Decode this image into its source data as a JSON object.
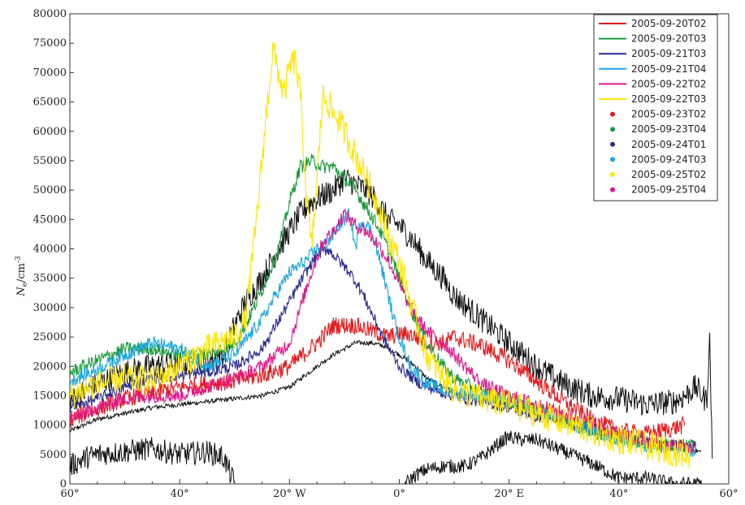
{
  "chart_data": {
    "type": "line",
    "title": "",
    "xlabel": "",
    "ylabel_main": "N",
    "ylabel_sub": "e",
    "ylabel_unit": "/cm",
    "ylabel_sup": "-3",
    "xlim": [
      -60,
      60
    ],
    "ylim": [
      0,
      80000
    ],
    "y_ticks": [
      0,
      5000,
      10000,
      15000,
      20000,
      25000,
      30000,
      35000,
      40000,
      45000,
      50000,
      55000,
      60000,
      65000,
      70000,
      75000,
      80000
    ],
    "y_tick_labels": [
      "0",
      "5000",
      "10000",
      "15000",
      "20000",
      "25000",
      "30000",
      "35000",
      "40000",
      "45000",
      "50000",
      "55000",
      "60000",
      "65000",
      "70000",
      "75000",
      "80000"
    ],
    "x_ticks": [
      -60,
      -40,
      -20,
      0,
      20,
      40,
      60
    ],
    "x_tick_labels": [
      "60°",
      "40°",
      "20° W",
      "0°",
      "20° E",
      "40°",
      "60°"
    ],
    "grid": false,
    "legend_position": "top-right",
    "series": [
      {
        "name": "2005-09-20T02",
        "color": "#e31a1c",
        "marker": "line",
        "x": [
          -60,
          -50,
          -40,
          -30,
          -25,
          -20,
          -15,
          -12,
          -8,
          -5,
          -2,
          0,
          2,
          5,
          8,
          10,
          15,
          20,
          25,
          30,
          35,
          40,
          45,
          50,
          52
        ],
        "y": [
          11000,
          14500,
          16500,
          17500,
          18500,
          20000,
          24000,
          27000,
          27000,
          26000,
          25000,
          25500,
          25500,
          24000,
          24000,
          25000,
          23500,
          21000,
          17500,
          14000,
          11000,
          9000,
          8500,
          9500,
          10000
        ],
        "noise": 1500
      },
      {
        "name": "2005-09-20T03",
        "color": "#1a9a3c",
        "marker": "line",
        "x": [
          -60,
          -55,
          -50,
          -45,
          -40,
          -35,
          -32,
          -30,
          -28,
          -25,
          -22,
          -20,
          -18,
          -16,
          -14,
          -12,
          -10,
          -8,
          -6,
          -4,
          -2,
          0,
          2,
          5,
          8,
          10,
          15,
          20,
          25,
          30,
          35,
          40,
          45,
          50,
          54
        ],
        "y": [
          19000,
          21000,
          23000,
          23000,
          22000,
          22000,
          23000,
          24000,
          27000,
          33000,
          40000,
          48000,
          54000,
          55000,
          54000,
          54000,
          52000,
          50000,
          47000,
          44000,
          40000,
          35000,
          30000,
          24000,
          20000,
          18000,
          15500,
          14500,
          13000,
          11000,
          9000,
          7500,
          7000,
          6500,
          6500
        ],
        "noise": 1200
      },
      {
        "name": "2005-09-21T03",
        "color": "#2b2b8f",
        "marker": "line",
        "x": [
          -60,
          -55,
          -50,
          -45,
          -40,
          -35,
          -30,
          -25,
          -20,
          -17,
          -15,
          -13,
          -11,
          -9,
          -7,
          -5,
          -3,
          0,
          3,
          5,
          8,
          10,
          12,
          15,
          20,
          25,
          30,
          35,
          40,
          45,
          50,
          54
        ],
        "y": [
          13000,
          14500,
          16500,
          18000,
          18500,
          19000,
          20000,
          23000,
          31000,
          36000,
          39000,
          40000,
          38000,
          36000,
          33000,
          29000,
          25000,
          20000,
          17500,
          16500,
          15500,
          15000,
          14500,
          14000,
          13000,
          11500,
          10500,
          9500,
          8000,
          7000,
          6500,
          6500
        ],
        "noise": 1000
      },
      {
        "name": "2005-09-21T04",
        "color": "#1aa7e0",
        "marker": "line",
        "x": [
          -60,
          -55,
          -50,
          -45,
          -40,
          -35,
          -30,
          -25,
          -22,
          -20,
          -17,
          -15,
          -13,
          -11,
          -9,
          -8,
          -7,
          -5,
          -3,
          -1,
          0,
          2,
          5,
          8,
          10,
          15,
          20,
          25,
          30,
          35,
          40,
          45,
          50,
          54
        ],
        "y": [
          17500,
          19500,
          22000,
          24000,
          23000,
          20000,
          22000,
          28000,
          33000,
          36000,
          38000,
          40000,
          41000,
          44000,
          46000,
          40000,
          45000,
          43000,
          36000,
          28000,
          25000,
          20000,
          17000,
          16000,
          15500,
          15000,
          14000,
          12500,
          10500,
          9000,
          7500,
          6500,
          6000,
          5500
        ],
        "noise": 1200
      },
      {
        "name": "2005-09-22T02",
        "color": "#e0178c",
        "marker": "line",
        "x": [
          -60,
          -55,
          -50,
          -45,
          -40,
          -35,
          -30,
          -25,
          -20,
          -18,
          -16,
          -14,
          -12,
          -10,
          -8,
          -6,
          -4,
          -2,
          0,
          2,
          5,
          8,
          10,
          15,
          20,
          25,
          30,
          35,
          40,
          45,
          50,
          54
        ],
        "y": [
          11000,
          13000,
          14500,
          15000,
          15000,
          16500,
          18000,
          20000,
          24000,
          30000,
          36000,
          41000,
          43000,
          46000,
          44000,
          43000,
          41000,
          38000,
          34000,
          30000,
          26000,
          24000,
          22000,
          17000,
          15000,
          13500,
          12000,
          10500,
          8500,
          7000,
          6500,
          6000
        ],
        "noise": 1200
      },
      {
        "name": "2005-09-22T03",
        "color": "#ffe600",
        "marker": "line",
        "x": [
          -60,
          -55,
          -50,
          -45,
          -40,
          -35,
          -30,
          -28,
          -26,
          -25,
          -24,
          -23,
          -22,
          -21,
          -20,
          -19,
          -18,
          -17,
          -16,
          -15,
          -14,
          -13,
          -12,
          -11,
          -10,
          -8,
          -6,
          -4,
          -2,
          0,
          2,
          5,
          8,
          10,
          15,
          20,
          25,
          30,
          35,
          40,
          45,
          50,
          53
        ],
        "y": [
          15000,
          17000,
          18000,
          17500,
          20000,
          23000,
          25000,
          28000,
          45000,
          55000,
          65000,
          74000,
          70000,
          66000,
          71000,
          72000,
          66000,
          50000,
          40000,
          51000,
          66000,
          65000,
          63000,
          62000,
          60000,
          56000,
          52000,
          48000,
          42000,
          38000,
          31000,
          22000,
          18000,
          16000,
          14500,
          13500,
          12000,
          10500,
          9000,
          7500,
          6500,
          5500,
          5000
        ],
        "noise": 2500
      },
      {
        "name": "2005-09-23T02",
        "color": "#e31a1c",
        "marker": "dot",
        "x": [],
        "y": []
      },
      {
        "name": "2005-09-23T04",
        "color": "#1a9a3c",
        "marker": "dot",
        "x": [],
        "y": []
      },
      {
        "name": "2005-09-24T01",
        "color": "#2b2b8f",
        "marker": "dot",
        "x": [],
        "y": []
      },
      {
        "name": "2005-09-24T03",
        "color": "#1aa7e0",
        "marker": "dot",
        "x": [],
        "y": []
      },
      {
        "name": "2005-09-25T02",
        "color": "#ffe600",
        "marker": "dot",
        "x": [],
        "y": []
      },
      {
        "name": "2005-09-25T04",
        "color": "#e0178c",
        "marker": "dot",
        "x": [],
        "y": []
      }
    ],
    "black_traces": [
      {
        "x": [
          -60,
          -55,
          -50,
          -45,
          -40,
          -35,
          -30,
          -25,
          -20,
          -15,
          -12,
          -10,
          -8,
          -5,
          -3,
          0,
          3,
          5,
          8,
          10,
          15,
          20,
          25,
          30,
          35,
          40,
          45,
          50,
          55
        ],
        "y": [
          9000,
          11000,
          12000,
          13000,
          13500,
          14000,
          14500,
          15000,
          16500,
          20000,
          22000,
          23000,
          24000,
          24000,
          23500,
          22000,
          20000,
          18000,
          16500,
          15500,
          14500,
          13500,
          12000,
          10500,
          9000,
          7500,
          7000,
          6000,
          5500
        ],
        "noise": 400
      },
      {
        "x": [
          -60,
          -55,
          -50,
          -45,
          -40,
          -35,
          -32,
          -30,
          -28,
          -25,
          -22,
          -20,
          -18,
          -16,
          -14,
          -12,
          -10,
          -8,
          -6,
          -4,
          -2,
          0,
          2,
          5,
          8,
          10,
          15,
          20,
          25,
          30,
          35,
          40,
          45,
          50,
          52,
          54,
          56,
          56.5,
          57
        ],
        "y": [
          14000,
          17000,
          19000,
          20000,
          20500,
          21000,
          22000,
          27000,
          31000,
          35000,
          40000,
          43000,
          46000,
          48000,
          49000,
          50000,
          52000,
          51000,
          50000,
          48000,
          45000,
          44000,
          42000,
          38000,
          35000,
          32000,
          28000,
          24000,
          20000,
          17000,
          15000,
          14500,
          13500,
          14000,
          15000,
          16500,
          14000,
          25000,
          5000
        ],
        "noise": 2200
      },
      {
        "x": [
          -60,
          -57,
          -55,
          -50,
          -45,
          -40,
          -35,
          -32,
          -30
        ],
        "y": [
          3000,
          4500,
          5000,
          5500,
          6000,
          5000,
          5500,
          4500,
          0
        ],
        "noise": 2000
      },
      {
        "x": [
          1,
          3,
          5,
          8,
          10,
          12,
          15,
          17,
          19,
          20,
          22,
          25,
          30,
          35,
          40,
          45,
          50,
          55
        ],
        "y": [
          0,
          1500,
          2500,
          3000,
          3000,
          3000,
          4500,
          6000,
          7500,
          8000,
          7500,
          7500,
          5500,
          3500,
          1000,
          1000,
          0,
          0
        ],
        "noise": 1200
      }
    ]
  }
}
